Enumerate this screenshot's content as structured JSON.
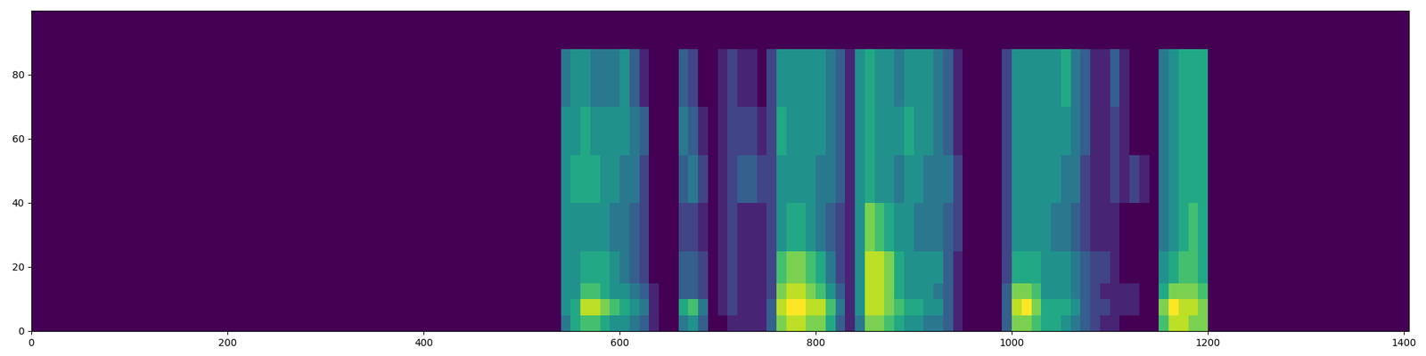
{
  "chart_data": {
    "type": "heatmap",
    "color": "viridis",
    "xlim": [
      0,
      1405
    ],
    "xticks": [
      0,
      200,
      400,
      600,
      800,
      1000,
      1200,
      1400
    ],
    "ylim": [
      0,
      100
    ],
    "yticks": [
      0,
      20,
      40,
      60,
      80
    ],
    "clim": [
      0,
      10
    ],
    "x_edges": [
      0,
      540,
      550,
      560,
      570,
      580,
      590,
      600,
      610,
      620,
      630,
      640,
      650,
      660,
      670,
      680,
      690,
      700,
      710,
      720,
      730,
      740,
      750,
      760,
      770,
      780,
      790,
      800,
      810,
      820,
      830,
      840,
      850,
      860,
      870,
      880,
      890,
      900,
      910,
      920,
      930,
      940,
      950,
      960,
      970,
      980,
      990,
      1000,
      1010,
      1020,
      1030,
      1040,
      1050,
      1060,
      1070,
      1080,
      1090,
      1100,
      1110,
      1120,
      1130,
      1140,
      1150,
      1160,
      1170,
      1180,
      1190,
      1200,
      1405
    ],
    "y_edges": [
      0,
      5,
      10,
      15,
      25,
      40,
      55,
      70,
      88,
      100
    ],
    "cells": [
      [
        0,
        0,
        0,
        0,
        0,
        0,
        0,
        0,
        0
      ],
      [
        4,
        5,
        5,
        5,
        5,
        5,
        5,
        4,
        0
      ],
      [
        6,
        6,
        5,
        5,
        5,
        6,
        5,
        5,
        0
      ],
      [
        7,
        9,
        7,
        6,
        5,
        6,
        6,
        5,
        0
      ],
      [
        7,
        9,
        7,
        6,
        5,
        6,
        5,
        4,
        0
      ],
      [
        6,
        8,
        6,
        6,
        5,
        5,
        5,
        4,
        0
      ],
      [
        5,
        7,
        5,
        5,
        4,
        5,
        5,
        4,
        0
      ],
      [
        5,
        6,
        5,
        4,
        4,
        4,
        5,
        5,
        0
      ],
      [
        4,
        5,
        4,
        3,
        3,
        4,
        4,
        3,
        0
      ],
      [
        3,
        4,
        3,
        2,
        2,
        2,
        3,
        1,
        0
      ],
      [
        1,
        1,
        1,
        0,
        0,
        0,
        0,
        0,
        0
      ],
      [
        0,
        0,
        0,
        0,
        0,
        0,
        0,
        0,
        0
      ],
      [
        0,
        0,
        0,
        0,
        0,
        0,
        0,
        0,
        0
      ],
      [
        4,
        6,
        3,
        3,
        2,
        3,
        4,
        3,
        0
      ],
      [
        5,
        7,
        3,
        3,
        2,
        4,
        3,
        2,
        0
      ],
      [
        3,
        4,
        2,
        2,
        1,
        2,
        1,
        0,
        0
      ],
      [
        0,
        0,
        0,
        0,
        0,
        0,
        0,
        0,
        0
      ],
      [
        0,
        1,
        1,
        1,
        1,
        1,
        1,
        1,
        0
      ],
      [
        1,
        2,
        2,
        2,
        2,
        2,
        2,
        2,
        0
      ],
      [
        1,
        1,
        1,
        1,
        1,
        3,
        2,
        1,
        0
      ],
      [
        1,
        1,
        1,
        1,
        1,
        3,
        2,
        1,
        0
      ],
      [
        1,
        1,
        1,
        1,
        1,
        2,
        1,
        0,
        0
      ],
      [
        3,
        3,
        2,
        2,
        2,
        2,
        2,
        2,
        0
      ],
      [
        8,
        9,
        8,
        7,
        5,
        5,
        6,
        5,
        0
      ],
      [
        9,
        10,
        9,
        8,
        6,
        5,
        5,
        5,
        0
      ],
      [
        9,
        10,
        9,
        8,
        6,
        5,
        5,
        5,
        0
      ],
      [
        8,
        9,
        8,
        7,
        5,
        5,
        5,
        5,
        0
      ],
      [
        8,
        9,
        7,
        6,
        4,
        4,
        5,
        5,
        0
      ],
      [
        6,
        7,
        5,
        4,
        3,
        4,
        4,
        4,
        0
      ],
      [
        3,
        4,
        3,
        2,
        2,
        3,
        3,
        3,
        0
      ],
      [
        1,
        1,
        1,
        1,
        1,
        1,
        1,
        1,
        0
      ],
      [
        4,
        5,
        5,
        5,
        5,
        5,
        5,
        5,
        0
      ],
      [
        8,
        9,
        9,
        9,
        8,
        6,
        6,
        6,
        0
      ],
      [
        8,
        9,
        9,
        9,
        7,
        5,
        5,
        5,
        0
      ],
      [
        7,
        8,
        8,
        8,
        6,
        5,
        5,
        5,
        0
      ],
      [
        6,
        7,
        6,
        6,
        5,
        4,
        5,
        4,
        0
      ],
      [
        5,
        6,
        5,
        5,
        5,
        5,
        6,
        5,
        0
      ],
      [
        5,
        6,
        5,
        5,
        4,
        5,
        5,
        5,
        0
      ],
      [
        4,
        5,
        5,
        5,
        4,
        4,
        5,
        5,
        0
      ],
      [
        4,
        5,
        4,
        5,
        4,
        4,
        4,
        4,
        0
      ],
      [
        3,
        3,
        3,
        3,
        3,
        4,
        3,
        3,
        0
      ],
      [
        1,
        1,
        1,
        1,
        2,
        2,
        1,
        1,
        0
      ],
      [
        0,
        0,
        0,
        0,
        0,
        0,
        0,
        0,
        0
      ],
      [
        0,
        0,
        0,
        0,
        0,
        0,
        0,
        0,
        0
      ],
      [
        0,
        0,
        0,
        0,
        0,
        0,
        0,
        0,
        0
      ],
      [
        0,
        0,
        0,
        0,
        0,
        0,
        0,
        0,
        0
      ],
      [
        3,
        3,
        3,
        2,
        2,
        2,
        2,
        2,
        0
      ],
      [
        8,
        9,
        8,
        6,
        5,
        5,
        5,
        5,
        0
      ],
      [
        8,
        10,
        8,
        6,
        5,
        5,
        5,
        5,
        0
      ],
      [
        7,
        8,
        7,
        6,
        5,
        5,
        5,
        5,
        0
      ],
      [
        6,
        6,
        5,
        5,
        5,
        5,
        5,
        5,
        0
      ],
      [
        6,
        6,
        5,
        5,
        4,
        5,
        5,
        5,
        0
      ],
      [
        5,
        6,
        5,
        5,
        4,
        4,
        5,
        6,
        0
      ],
      [
        4,
        5,
        4,
        4,
        3,
        4,
        4,
        4,
        0
      ],
      [
        3,
        3,
        3,
        3,
        2,
        2,
        3,
        3,
        0
      ],
      [
        2,
        2,
        2,
        2,
        1,
        1,
        1,
        1,
        0
      ],
      [
        1,
        2,
        1,
        2,
        1,
        1,
        1,
        1,
        0
      ],
      [
        1,
        1,
        1,
        1,
        1,
        2,
        2,
        3,
        0
      ],
      [
        0,
        1,
        1,
        0,
        0,
        1,
        1,
        1,
        0
      ],
      [
        0,
        1,
        1,
        0,
        0,
        2,
        0,
        0,
        0
      ],
      [
        0,
        0,
        0,
        0,
        0,
        1,
        0,
        0,
        0
      ],
      [
        0,
        0,
        0,
        0,
        0,
        0,
        0,
        0,
        0
      ],
      [
        7,
        8,
        6,
        5,
        4,
        4,
        4,
        4,
        0
      ],
      [
        9,
        10,
        8,
        6,
        5,
        5,
        5,
        5,
        0
      ],
      [
        9,
        9,
        8,
        7,
        6,
        6,
        6,
        6,
        0
      ],
      [
        8,
        9,
        8,
        7,
        7,
        6,
        6,
        6,
        0
      ],
      [
        8,
        8,
        7,
        6,
        6,
        6,
        6,
        6,
        0
      ],
      [
        0,
        0,
        0,
        0,
        0,
        0,
        0,
        0,
        0
      ]
    ]
  }
}
